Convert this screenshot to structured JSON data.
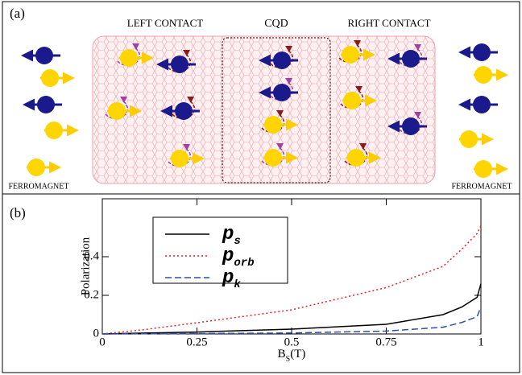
{
  "panel_a": {
    "label": "(a)",
    "left_contact": "LEFT CONTACT",
    "cqd": "CQD",
    "right_contact": "RIGHT CONTACT",
    "ferromagnet_left": "FERROMAGNET",
    "ferromagnet_right": "FERROMAGNET"
  },
  "chart_data": {
    "type": "line",
    "panel_label": "(b)",
    "x_label": {
      "text": "B",
      "subscript": "S",
      "suffix": "(T)"
    },
    "y_label": "Polarization",
    "x": [
      0,
      0.1,
      0.25,
      0.5,
      0.75,
      0.9,
      0.95,
      0.99,
      1
    ],
    "series": [
      {
        "name": "p",
        "subscript": "s",
        "color": "#000000",
        "dash": "solid",
        "values": [
          0,
          0.004,
          0.01,
          0.025,
          0.05,
          0.1,
          0.14,
          0.19,
          0.26
        ]
      },
      {
        "name": "p",
        "subscript": "orb",
        "color": "#e8202a",
        "dash": "dotted",
        "values": [
          0,
          0.02,
          0.058,
          0.125,
          0.24,
          0.35,
          0.44,
          0.52,
          0.56
        ]
      },
      {
        "name": "p",
        "subscript": "k",
        "color": "#2a4fb0",
        "dash": "dashed",
        "values": [
          0,
          0.001,
          0.002,
          0.005,
          0.015,
          0.035,
          0.06,
          0.09,
          0.14
        ]
      }
    ],
    "xlim": [
      0,
      1
    ],
    "xticks": [
      0,
      0.25,
      0.5,
      0.75,
      1
    ],
    "ylim": [
      0,
      0.7
    ],
    "yticks": [
      0,
      0.2,
      0.4
    ]
  }
}
